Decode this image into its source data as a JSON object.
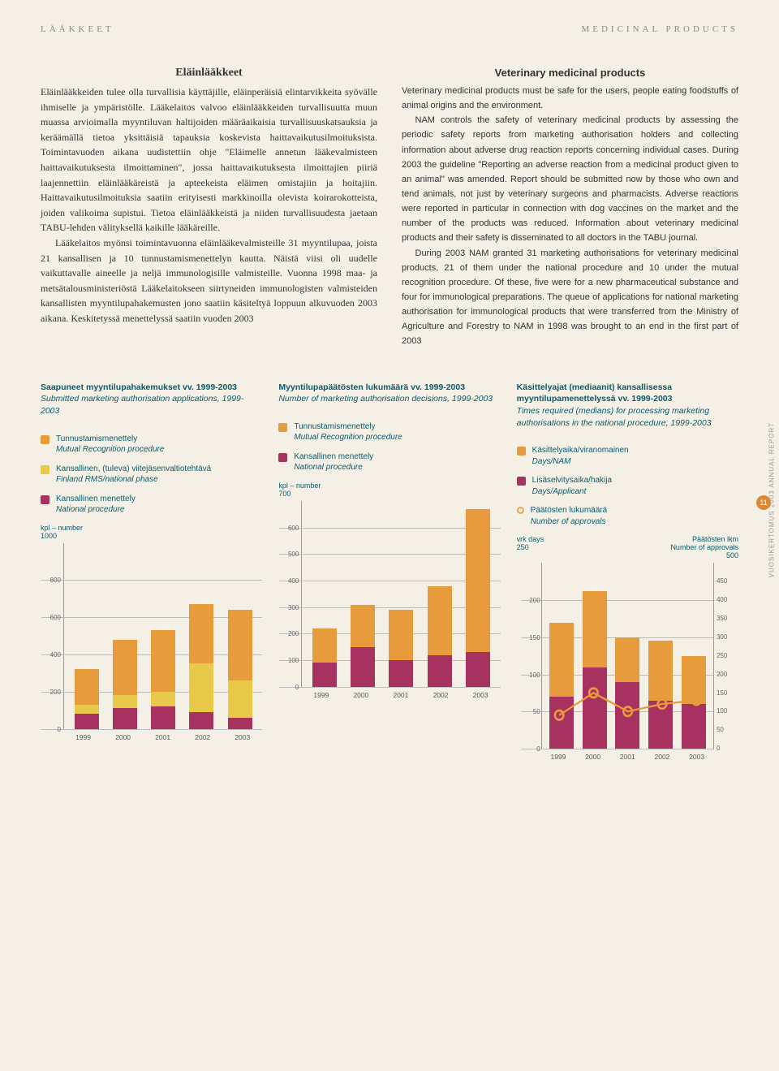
{
  "header": {
    "left": "LÄÄKKEET",
    "right": "MEDICINAL PRODUCTS"
  },
  "sidebar": "VUOSIKERTOMUS 2003 ANNUAL REPORT",
  "page_num": "11",
  "left_col": {
    "title": "Eläinlääkkeet",
    "p1": "Eläinlääkkeiden tulee olla turvallisia käyttäjille, eläinperäisiä elintarvikkeita syövälle ihmiselle ja ympäristölle. Lääkelaitos valvoo eläinlääkkeiden turvallisuutta muun muassa arvioimalla myyntiluvan haltijoiden määräaikaisia turvallisuuskatsauksia ja keräämällä tietoa yksittäisiä tapauksia koskevista haittavaikutusilmoituksista. Toimintavuoden aikana uudistettiin ohje \"Eläimelle annetun lääkevalmisteen haittavaikutuksesta ilmoittaminen\", jossa haittavaikutuksesta ilmoittajien piiriä laajennettiin eläinlääkäreistä ja apteekeista eläimen omistajiin ja hoitajiin. Haittavaikutusilmoituksia saatiin erityisesti markkinoilla olevista koirarokotteista, joiden valikoima supistui. Tietoa eläinlääkkeistä ja niiden turvallisuudesta jaetaan TABU-lehden välityksellä kaikille lääkäreille.",
    "p2": "Lääkelaitos myönsi toimintavuonna eläinlääkevalmisteille 31 myyntilupaa, joista 21 kansallisen ja 10 tunnustamismenettelyn kautta. Näistä viisi oli uudelle vaikuttavalle aineelle ja neljä immunologisille valmisteille. Vuonna 1998 maa- ja metsätalousministeriöstä Lääkelaitokseen siirtyneiden immunologisten valmisteiden kansallisten myyntilupahakemusten jono saatiin käsiteltyä loppuun alkuvuoden 2003 aikana. Keskitetyssä menettelyssä saatiin vuoden 2003"
  },
  "right_col": {
    "title": "Veterinary medicinal products",
    "p1": "Veterinary medicinal products must be safe for the users, people eating foodstuffs of animal origins and the environment.",
    "p2": "NAM controls the safety of veterinary medicinal products by assessing the periodic safety reports from marketing authorisation holders and collecting information about adverse drug reaction reports concerning individual cases. During 2003 the guideline \"Reporting an adverse reaction from a medicinal product given to an animal\" was amended. Report should be submitted now by those who own and tend animals, not just by veterinary surgeons and pharmacists. Adverse reactions were reported in particular in connection with dog vaccines on the market and the number of the products was reduced. Information about veterinary medicinal products and their safety is disseminated to all doctors in the TABU journal.",
    "p3": "During 2003 NAM granted 31 marketing authorisations for veterinary medicinal products, 21 of them under the national procedure and 10 under the mutual recognition procedure. Of these, five were for a new pharmaceutical substance and four for immunological preparations. The queue of applications for national marketing authorisation for immunological products that were transferred from the Ministry of Agriculture and Forestry to NAM in 1998 was brought to an end in the first part of 2003"
  },
  "colors": {
    "orange": "#e89b3c",
    "yellow": "#e8c94a",
    "magenta": "#a8325f",
    "teal": "#0a5a6a",
    "bg": "#f5f0e6"
  },
  "chart1": {
    "title_main": "Saapuneet myyntilupahakemukset vv. 1999-2003",
    "title_sub": "Submitted marketing authorisation applications, 1999-2003",
    "legend": [
      {
        "c": "#e89b3c",
        "t": "Tunnustamismenettely",
        "s": "Mutual Recognition procedure"
      },
      {
        "c": "#e8c94a",
        "t": "Kansallinen, (tuleva) viitejäsenvaltiotehtävä",
        "s": "Finland RMS/national phase"
      },
      {
        "c": "#a8325f",
        "t": "Kansallinen menettely",
        "s": "National procedure"
      }
    ],
    "y_label": "kpl – number",
    "y_max": 1000,
    "y_step": 200,
    "years": [
      "1999",
      "2000",
      "2001",
      "2002",
      "2003"
    ],
    "stacks": [
      {
        "magenta": 80,
        "yellow": 50,
        "orange": 190
      },
      {
        "magenta": 110,
        "yellow": 70,
        "orange": 300
      },
      {
        "magenta": 120,
        "yellow": 80,
        "orange": 330
      },
      {
        "magenta": 90,
        "yellow": 260,
        "orange": 320
      },
      {
        "magenta": 60,
        "yellow": 200,
        "orange": 380
      }
    ]
  },
  "chart2": {
    "title_main": "Myyntilupapäätösten lukumäärä vv. 1999-2003",
    "title_sub": "Number of marketing authorisation decisions, 1999-2003",
    "legend": [
      {
        "c": "#e89b3c",
        "t": "Tunnustamismenettely",
        "s": "Mutual Recognition procedure"
      },
      {
        "c": "#a8325f",
        "t": "Kansallinen menettely",
        "s": "National procedure"
      }
    ],
    "y_label": "kpl – number",
    "y_max": 700,
    "y_step": 100,
    "years": [
      "1999",
      "2000",
      "2001",
      "2002",
      "2003"
    ],
    "stacks": [
      {
        "magenta": 90,
        "orange": 130
      },
      {
        "magenta": 150,
        "orange": 160
      },
      {
        "magenta": 100,
        "orange": 190
      },
      {
        "magenta": 120,
        "orange": 260
      },
      {
        "magenta": 130,
        "orange": 540
      }
    ]
  },
  "chart3": {
    "title_main": "Käsittelyajat (mediaanit) kansallisessa myyntilupamenettelyssä vv. 1999-2003",
    "title_sub": "Times required (medians) for processing marketing authorisations in the national procedure, 1999-2003",
    "legend": [
      {
        "c": "#e89b3c",
        "t": "Käsittelyaika/viranomainen",
        "s": "Days/NAM"
      },
      {
        "c": "#a8325f",
        "t": "Lisäselvitysaika/hakija",
        "s": "Days/Applicant"
      },
      {
        "circle": true,
        "t": "Päätösten lukumäärä",
        "s": "Number of approvals"
      }
    ],
    "y_left_label": "vrk\ndays",
    "y_left_max": 250,
    "y_left_step": 50,
    "y_right_label": "Päätösten lkm\nNumber of approvals",
    "y_right_max": 500,
    "y_right_step": 50,
    "years": [
      "1999",
      "2000",
      "2001",
      "2002",
      "2003"
    ],
    "stacks": [
      {
        "magenta": 70,
        "orange": 100
      },
      {
        "magenta": 110,
        "orange": 102
      },
      {
        "magenta": 90,
        "orange": 60
      },
      {
        "magenta": 65,
        "orange": 80
      },
      {
        "magenta": 60,
        "orange": 65
      }
    ],
    "line_vals": [
      90,
      150,
      100,
      120,
      130
    ],
    "line_color": "#e89b3c"
  }
}
